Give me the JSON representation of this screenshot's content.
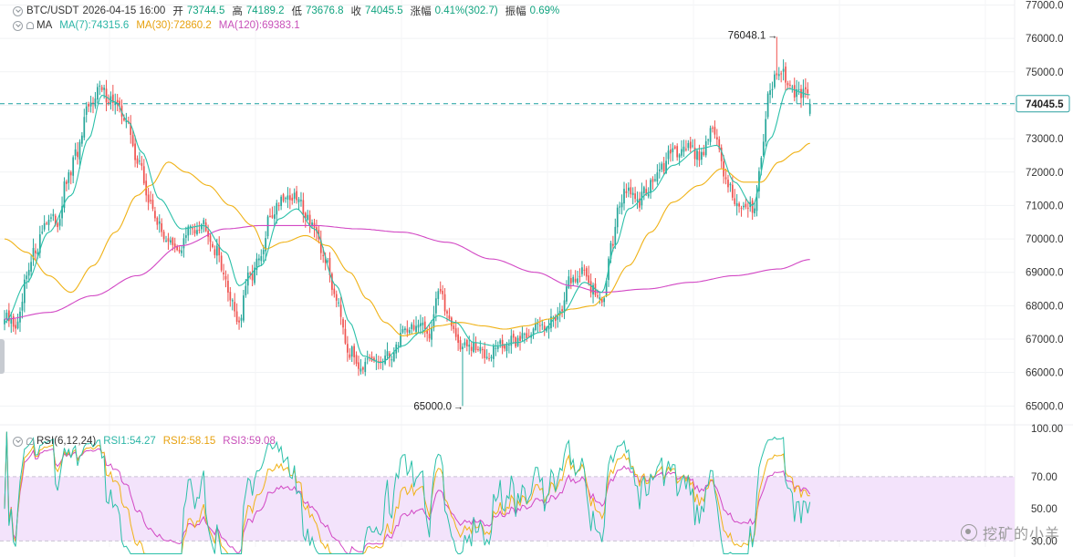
{
  "header": {
    "symbol": "BTC/USDT",
    "datetime": "2026-04-15 16:00",
    "open_label": "开",
    "open": "73744.5",
    "high_label": "高",
    "high": "74189.2",
    "low_label": "低",
    "low": "73676.8",
    "close_label": "收",
    "close": "74045.5",
    "change_label": "涨幅",
    "change": "0.41%(302.7)",
    "amplitude_label": "振幅",
    "amplitude": "0.69%"
  },
  "ma_legend": {
    "label": "MA",
    "ma7": "MA(7):74315.6",
    "ma30": "MA(30):72860.2",
    "ma120": "MA(120):69383.1"
  },
  "rsi_legend": {
    "label": "RSI(6,12,24)",
    "rsi1": "RSI1:54.27",
    "rsi2": "RSI2:58.15",
    "rsi3": "RSI3:59.08"
  },
  "annotations": {
    "high_mark": "76048.1",
    "low_mark": "65000.0",
    "current_price": "74045.5"
  },
  "watermark": "挖矿的小羊",
  "colors": {
    "up": "#26a69a",
    "down": "#ef5350",
    "ma7": "#2bc0a9",
    "ma30": "#f0b216",
    "ma120": "#d247c4",
    "rsi1": "#2bc0a9",
    "rsi2": "#f0b216",
    "rsi3": "#d247c4",
    "rsi_band": "#f3e3fb",
    "price_line": "#1aa0a0"
  },
  "chart_data": [
    {
      "type": "candlestick",
      "title": "BTC/USDT",
      "y_ticks": [
        65000,
        66000,
        67000,
        68000,
        69000,
        70000,
        71000,
        72000,
        73000,
        74000,
        75000,
        76000,
        77000
      ],
      "y_tick_labels": [
        "65000.0",
        "66000.0",
        "67000.0",
        "68000.0",
        "69000.0",
        "70000.0",
        "71000.0",
        "72000.0",
        "73000.0",
        "74000.0",
        "75000.0",
        "76000.0",
        "77000.0"
      ],
      "ylim": [
        64600,
        77150
      ],
      "current_price": 74045.5,
      "max_high": 76048.1,
      "min_low": 65000.0,
      "series_keypoints": {
        "close": [
          [
            0,
            67600
          ],
          [
            6,
            67400
          ],
          [
            10,
            68800
          ],
          [
            14,
            69700
          ],
          [
            19,
            70600
          ],
          [
            24,
            70500
          ],
          [
            28,
            71700
          ],
          [
            33,
            72600
          ],
          [
            38,
            73900
          ],
          [
            42,
            74500
          ],
          [
            48,
            74200
          ],
          [
            54,
            73700
          ],
          [
            60,
            72400
          ],
          [
            66,
            71000
          ],
          [
            72,
            70100
          ],
          [
            78,
            69600
          ],
          [
            84,
            70300
          ],
          [
            90,
            70500
          ],
          [
            96,
            69600
          ],
          [
            102,
            68300
          ],
          [
            106,
            67500
          ],
          [
            110,
            68800
          ],
          [
            116,
            69400
          ],
          [
            120,
            70700
          ],
          [
            126,
            71300
          ],
          [
            132,
            71200
          ],
          [
            138,
            70600
          ],
          [
            144,
            69500
          ],
          [
            150,
            68300
          ],
          [
            156,
            66600
          ],
          [
            162,
            66200
          ],
          [
            168,
            66300
          ],
          [
            172,
            66400
          ],
          [
            176,
            66600
          ],
          [
            180,
            67300
          ],
          [
            186,
            67400
          ],
          [
            192,
            67200
          ],
          [
            196,
            68500
          ],
          [
            200,
            67800
          ],
          [
            206,
            66800
          ],
          [
            212,
            66700
          ],
          [
            218,
            66600
          ],
          [
            224,
            66800
          ],
          [
            230,
            66900
          ],
          [
            236,
            67200
          ],
          [
            242,
            67400
          ],
          [
            248,
            67600
          ],
          [
            252,
            68000
          ],
          [
            256,
            68800
          ],
          [
            262,
            69000
          ],
          [
            266,
            68500
          ],
          [
            270,
            68000
          ],
          [
            274,
            69800
          ],
          [
            278,
            71100
          ],
          [
            282,
            71500
          ],
          [
            286,
            71000
          ],
          [
            290,
            71500
          ],
          [
            296,
            72000
          ],
          [
            302,
            72600
          ],
          [
            308,
            72800
          ],
          [
            314,
            72500
          ],
          [
            320,
            73300
          ],
          [
            326,
            71800
          ],
          [
            330,
            71200
          ],
          [
            334,
            70800
          ],
          [
            339,
            71000
          ],
          [
            342,
            72600
          ],
          [
            346,
            74600
          ],
          [
            350,
            75000
          ],
          [
            354,
            74800
          ],
          [
            358,
            74300
          ],
          [
            362,
            74300
          ],
          [
            364,
            74045
          ]
        ],
        "ma7": [
          [
            0,
            67500
          ],
          [
            10,
            68700
          ],
          [
            20,
            70200
          ],
          [
            30,
            71300
          ],
          [
            38,
            73000
          ],
          [
            44,
            74300
          ],
          [
            50,
            74100
          ],
          [
            56,
            73500
          ],
          [
            62,
            72600
          ],
          [
            70,
            71200
          ],
          [
            80,
            70300
          ],
          [
            90,
            70400
          ],
          [
            100,
            69600
          ],
          [
            106,
            68600
          ],
          [
            116,
            69200
          ],
          [
            124,
            70600
          ],
          [
            132,
            70900
          ],
          [
            140,
            70300
          ],
          [
            150,
            68600
          ],
          [
            156,
            67500
          ],
          [
            162,
            66500
          ],
          [
            170,
            66300
          ],
          [
            180,
            66800
          ],
          [
            188,
            67200
          ],
          [
            196,
            67700
          ],
          [
            204,
            67500
          ],
          [
            212,
            66900
          ],
          [
            222,
            66800
          ],
          [
            232,
            66900
          ],
          [
            242,
            67200
          ],
          [
            252,
            67800
          ],
          [
            262,
            68700
          ],
          [
            270,
            68400
          ],
          [
            276,
            69800
          ],
          [
            282,
            70900
          ],
          [
            292,
            71400
          ],
          [
            302,
            72200
          ],
          [
            314,
            72700
          ],
          [
            322,
            72800
          ],
          [
            330,
            71700
          ],
          [
            338,
            71000
          ],
          [
            346,
            73000
          ],
          [
            354,
            74500
          ],
          [
            364,
            74315
          ]
        ],
        "ma30": [
          [
            0,
            70000
          ],
          [
            10,
            69600
          ],
          [
            20,
            68900
          ],
          [
            30,
            68400
          ],
          [
            40,
            69200
          ],
          [
            50,
            70200
          ],
          [
            60,
            71300
          ],
          [
            66,
            71600
          ],
          [
            74,
            72300
          ],
          [
            82,
            72000
          ],
          [
            92,
            71600
          ],
          [
            102,
            71000
          ],
          [
            112,
            70400
          ],
          [
            118,
            69700
          ],
          [
            126,
            69900
          ],
          [
            136,
            70100
          ],
          [
            146,
            69800
          ],
          [
            156,
            69000
          ],
          [
            164,
            68200
          ],
          [
            172,
            67500
          ],
          [
            180,
            67100
          ],
          [
            188,
            67200
          ],
          [
            196,
            67400
          ],
          [
            206,
            67500
          ],
          [
            216,
            67400
          ],
          [
            226,
            67300
          ],
          [
            236,
            67400
          ],
          [
            246,
            67600
          ],
          [
            256,
            67900
          ],
          [
            266,
            68000
          ],
          [
            272,
            68300
          ],
          [
            282,
            69200
          ],
          [
            292,
            70200
          ],
          [
            302,
            71100
          ],
          [
            314,
            71600
          ],
          [
            324,
            72100
          ],
          [
            334,
            71700
          ],
          [
            342,
            71700
          ],
          [
            350,
            72300
          ],
          [
            358,
            72600
          ],
          [
            364,
            72860
          ]
        ],
        "ma120": [
          [
            0,
            67600
          ],
          [
            20,
            67800
          ],
          [
            40,
            68300
          ],
          [
            60,
            68900
          ],
          [
            80,
            69800
          ],
          [
            100,
            70300
          ],
          [
            116,
            70400
          ],
          [
            140,
            70400
          ],
          [
            160,
            70300
          ],
          [
            180,
            70200
          ],
          [
            200,
            69900
          ],
          [
            220,
            69400
          ],
          [
            240,
            69000
          ],
          [
            256,
            68600
          ],
          [
            270,
            68400
          ],
          [
            290,
            68500
          ],
          [
            310,
            68700
          ],
          [
            330,
            68900
          ],
          [
            350,
            69100
          ],
          [
            364,
            69383
          ]
        ]
      }
    },
    {
      "type": "line",
      "title": "RSI(6,12,24)",
      "y_ticks": [
        30,
        50,
        70,
        100
      ],
      "y_tick_labels": [
        "30.00",
        "50.00",
        "70.00",
        "100.00"
      ],
      "ylim": [
        20,
        100
      ],
      "band": [
        30,
        70
      ],
      "series": [
        {
          "name": "RSI1",
          "last": 54.27
        },
        {
          "name": "RSI2",
          "last": 58.15
        },
        {
          "name": "RSI3",
          "last": 59.08
        }
      ]
    }
  ]
}
